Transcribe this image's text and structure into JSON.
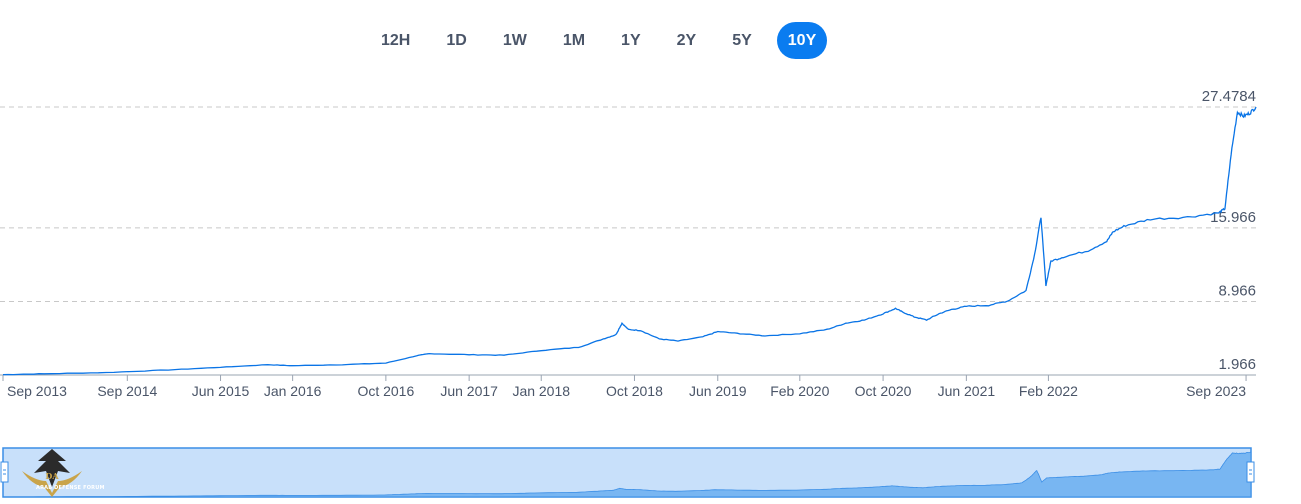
{
  "range_buttons": {
    "items": [
      {
        "label": "12H",
        "active": false
      },
      {
        "label": "1D",
        "active": false
      },
      {
        "label": "1W",
        "active": false
      },
      {
        "label": "1M",
        "active": false
      },
      {
        "label": "1Y",
        "active": false
      },
      {
        "label": "2Y",
        "active": false
      },
      {
        "label": "5Y",
        "active": false
      },
      {
        "label": "10Y",
        "active": true
      }
    ]
  },
  "watermark": {
    "text": "ARAB DEFENSE FORUM"
  },
  "colors": {
    "line": "#0a74e6",
    "grid": "#c8c8c8",
    "active_button": "#0a7cf0",
    "navigator_fill": "#c8e0fa",
    "navigator_area": "#6aaef0",
    "navigator_border": "#3a8ee6"
  },
  "chart_data": {
    "type": "line",
    "title": "",
    "xlabel": "",
    "ylabel": "",
    "ylim": [
      1.966,
      27.4784
    ],
    "y_gridlines": [
      1.966,
      8.966,
      15.966,
      27.4784
    ],
    "x_tick_labels": [
      "Sep 2013",
      "Sep 2014",
      "Jun 2015",
      "Jan 2016",
      "Oct 2016",
      "Jun 2017",
      "Jan 2018",
      "Oct 2018",
      "Jun 2019",
      "Feb 2020",
      "Oct 2020",
      "Jun 2021",
      "Feb 2022",
      "Sep 2023"
    ],
    "x_tick_values": [
      2013.67,
      2014.67,
      2015.42,
      2016.0,
      2016.75,
      2017.42,
      2018.0,
      2018.75,
      2019.42,
      2020.08,
      2020.75,
      2021.42,
      2022.08,
      2023.67
    ],
    "xlim": [
      2013.67,
      2023.75
    ],
    "series": [
      {
        "points": [
          [
            2013.67,
            2.0
          ],
          [
            2014.0,
            2.08
          ],
          [
            2014.5,
            2.2
          ],
          [
            2015.0,
            2.45
          ],
          [
            2015.42,
            2.7
          ],
          [
            2015.8,
            2.95
          ],
          [
            2016.0,
            2.85
          ],
          [
            2016.4,
            2.95
          ],
          [
            2016.75,
            3.1
          ],
          [
            2017.0,
            3.8
          ],
          [
            2017.1,
            4.0
          ],
          [
            2017.42,
            3.9
          ],
          [
            2017.7,
            3.85
          ],
          [
            2018.0,
            4.3
          ],
          [
            2018.3,
            4.6
          ],
          [
            2018.5,
            5.4
          ],
          [
            2018.6,
            5.8
          ],
          [
            2018.65,
            6.9
          ],
          [
            2018.7,
            6.3
          ],
          [
            2018.8,
            6.2
          ],
          [
            2018.95,
            5.4
          ],
          [
            2019.1,
            5.2
          ],
          [
            2019.3,
            5.6
          ],
          [
            2019.42,
            6.1
          ],
          [
            2019.6,
            5.9
          ],
          [
            2019.8,
            5.7
          ],
          [
            2020.08,
            5.9
          ],
          [
            2020.3,
            6.3
          ],
          [
            2020.45,
            6.9
          ],
          [
            2020.6,
            7.2
          ],
          [
            2020.75,
            7.8
          ],
          [
            2020.85,
            8.3
          ],
          [
            2020.9,
            8.0
          ],
          [
            2021.0,
            7.5
          ],
          [
            2021.1,
            7.2
          ],
          [
            2021.2,
            7.8
          ],
          [
            2021.3,
            8.2
          ],
          [
            2021.42,
            8.5
          ],
          [
            2021.6,
            8.6
          ],
          [
            2021.75,
            9.0
          ],
          [
            2021.9,
            10.0
          ],
          [
            2021.97,
            13.5
          ],
          [
            2022.02,
            17.0
          ],
          [
            2022.06,
            10.5
          ],
          [
            2022.1,
            12.8
          ],
          [
            2022.2,
            13.2
          ],
          [
            2022.4,
            13.8
          ],
          [
            2022.55,
            14.7
          ],
          [
            2022.6,
            15.6
          ],
          [
            2022.7,
            16.2
          ],
          [
            2022.9,
            16.8
          ],
          [
            2023.2,
            17.0
          ],
          [
            2023.45,
            17.4
          ],
          [
            2023.5,
            17.8
          ],
          [
            2023.55,
            23.0
          ],
          [
            2023.6,
            27.0
          ],
          [
            2023.65,
            26.6
          ],
          [
            2023.7,
            26.9
          ],
          [
            2023.75,
            27.4784
          ]
        ]
      }
    ],
    "legend": "none",
    "grid": "horizontal dashed"
  }
}
